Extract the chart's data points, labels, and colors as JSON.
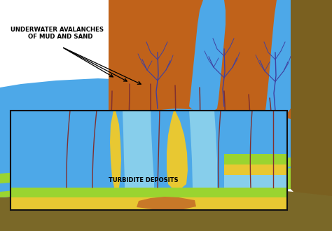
{
  "label_avalanche": "UNDERWATER AVALANCHES\n   OF MUD AND SAND",
  "label_turbidite": "TURBIDITE DEPOSITS",
  "mountain_color": "#c0621a",
  "water_color": "#4da8e8",
  "water_light": "#87ceeb",
  "sand_color": "#e8c832",
  "green_color": "#9ad430",
  "brown_floor": "#7a6828",
  "dark_brown": "#7a6020",
  "river_color": "#4040a0",
  "flow_line_color": "#803030",
  "orange_color": "#c87828",
  "text_color": "#000000",
  "box_color": "#111111",
  "white": "#ffffff"
}
